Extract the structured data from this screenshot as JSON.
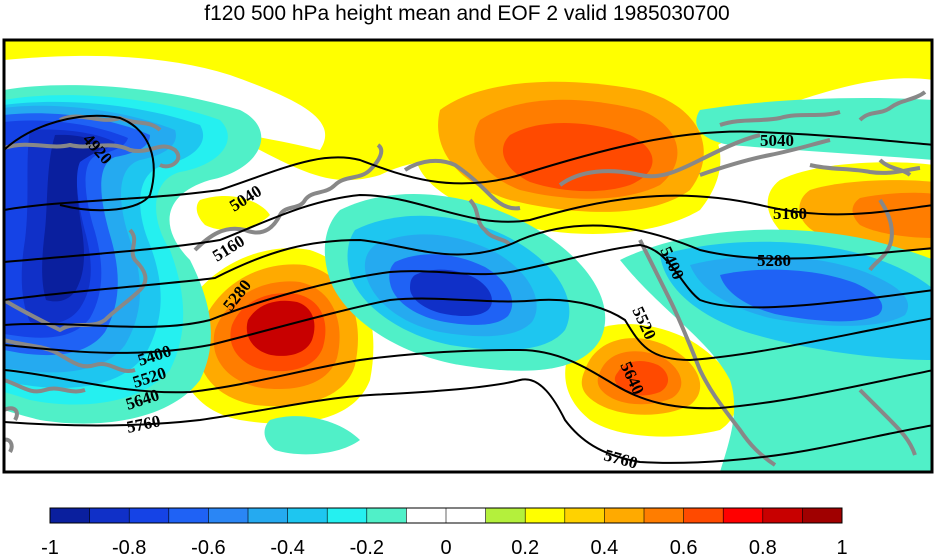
{
  "title": "f120 500 hPa height mean and EOF 2 valid 1985030700",
  "colors": {
    "levels": [
      "#0a1f9e",
      "#1030c8",
      "#1543e6",
      "#1f62f5",
      "#2a86f5",
      "#25aaf0",
      "#1ec6f0",
      "#25f0f0",
      "#50f0c8",
      "#ffffff",
      "#ffffff",
      "#b4f03c",
      "#ffff00",
      "#ffd200",
      "#ffaa00",
      "#ff7d00",
      "#ff4a00",
      "#ff0000",
      "#c80000",
      "#a00000"
    ],
    "coast": "#888888",
    "contour": "#000000"
  },
  "colorbar_ticks": [
    "-1",
    "-0.8",
    "-0.6",
    "-0.4",
    "-0.2",
    "0",
    "0.2",
    "0.4",
    "0.6",
    "0.8",
    "1"
  ],
  "contour_labels": [
    "4920",
    "5040",
    "5040",
    "5160",
    "5160",
    "5280",
    "5280",
    "5400",
    "5400",
    "5520",
    "5520",
    "5640",
    "5640",
    "5760",
    "5760"
  ]
}
